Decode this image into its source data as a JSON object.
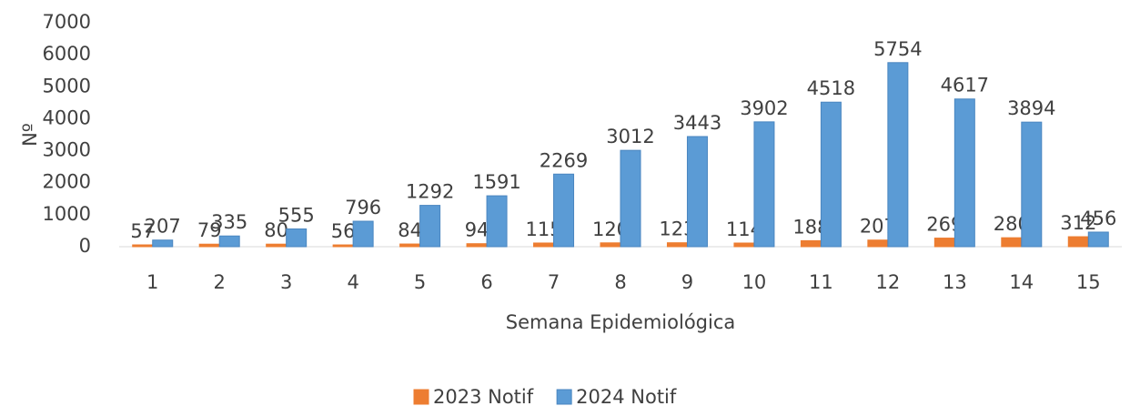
{
  "chart_data": {
    "type": "bar",
    "x_label": "Semana Epidemiológica",
    "y_label": "Nº",
    "categories": [
      "1",
      "2",
      "3",
      "4",
      "5",
      "6",
      "7",
      "8",
      "9",
      "10",
      "11",
      "12",
      "13",
      "14",
      "15"
    ],
    "series": [
      {
        "name": "2023 Notif",
        "color": "#ed7d31",
        "values": [
          57,
          79,
          80,
          56,
          84,
          94,
          115,
          120,
          123,
          114,
          188,
          207,
          269,
          280,
          312
        ]
      },
      {
        "name": "2024 Notif",
        "color": "#5b9bd5",
        "values": [
          207,
          335,
          555,
          796,
          1292,
          1591,
          2269,
          3012,
          3443,
          3902,
          4518,
          5754,
          4617,
          3894,
          456
        ]
      }
    ],
    "ylim": [
      0,
      7000
    ],
    "yticks": [
      0,
      1000,
      2000,
      3000,
      4000,
      5000,
      6000,
      7000
    ],
    "grid": false,
    "legend": "bottom"
  }
}
